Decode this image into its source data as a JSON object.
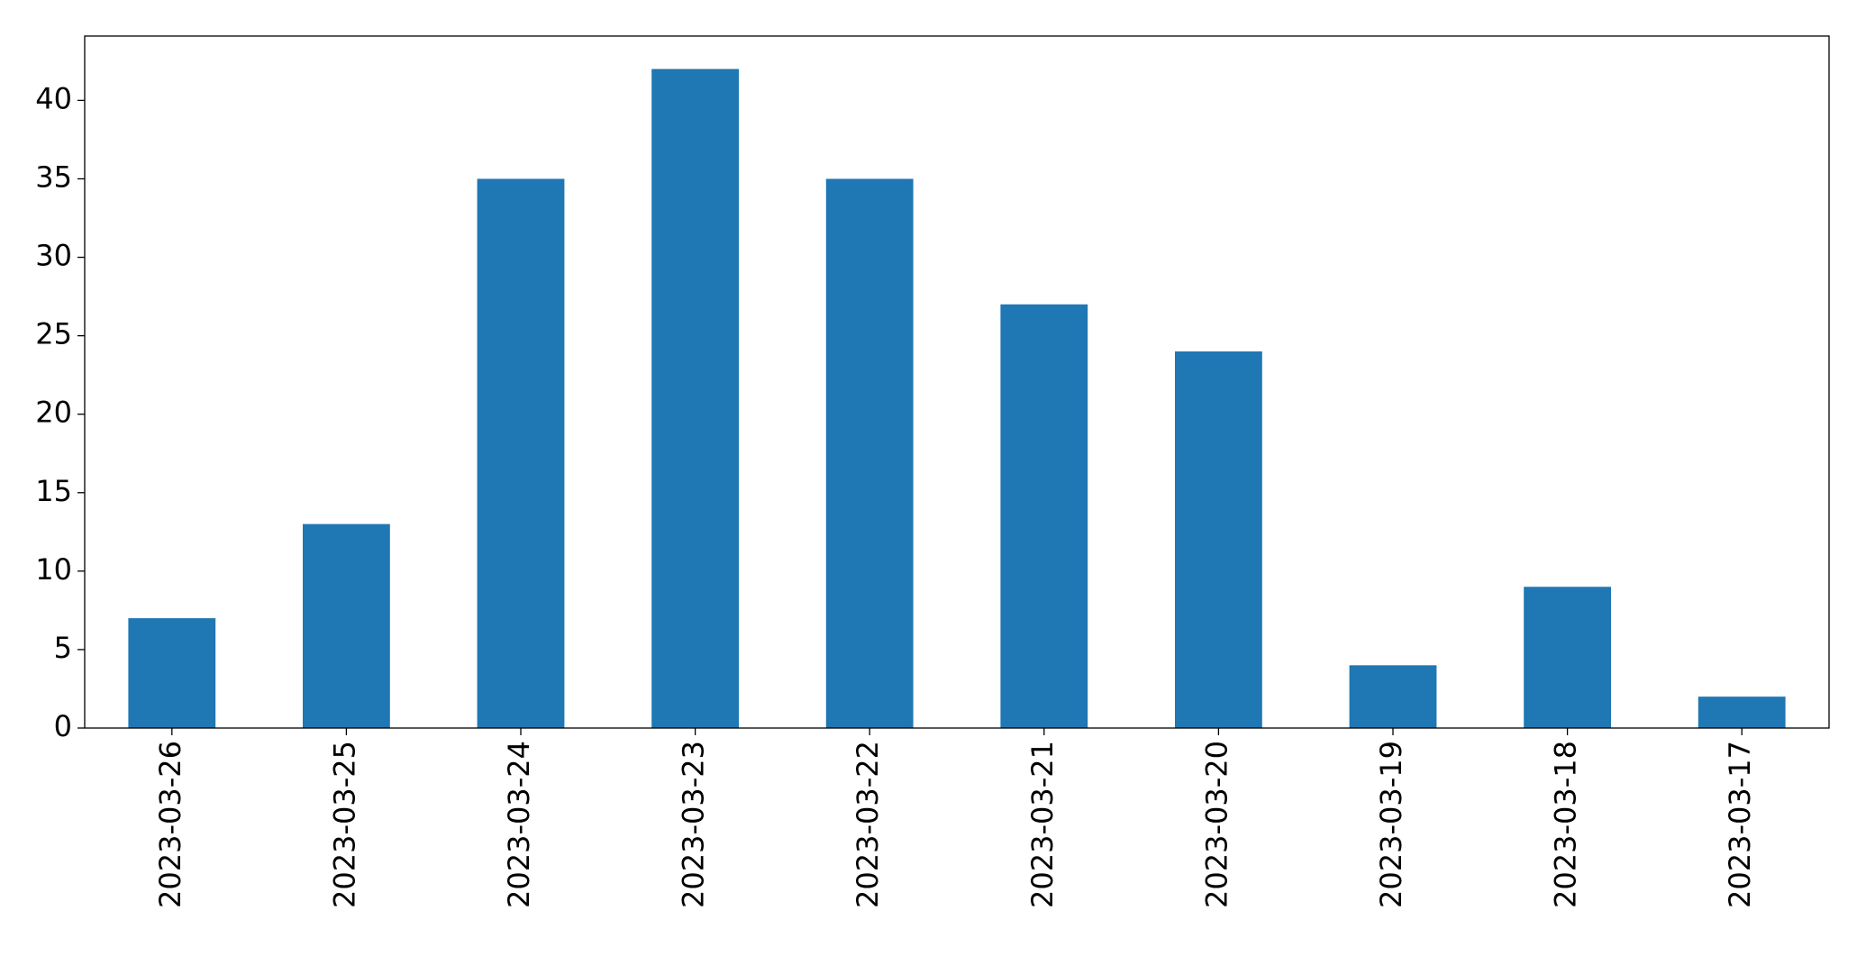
{
  "chart_data": {
    "type": "bar",
    "categories": [
      "2023-03-26",
      "2023-03-25",
      "2023-03-24",
      "2023-03-23",
      "2023-03-22",
      "2023-03-21",
      "2023-03-20",
      "2023-03-19",
      "2023-03-18",
      "2023-03-17"
    ],
    "values": [
      7,
      13,
      35,
      42,
      35,
      27,
      24,
      4,
      9,
      2
    ],
    "color": "#1f77b4",
    "ylim": [
      0,
      44.1
    ],
    "yticks": [
      0,
      5,
      10,
      15,
      20,
      25,
      30,
      35,
      40
    ],
    "grid": false
  }
}
